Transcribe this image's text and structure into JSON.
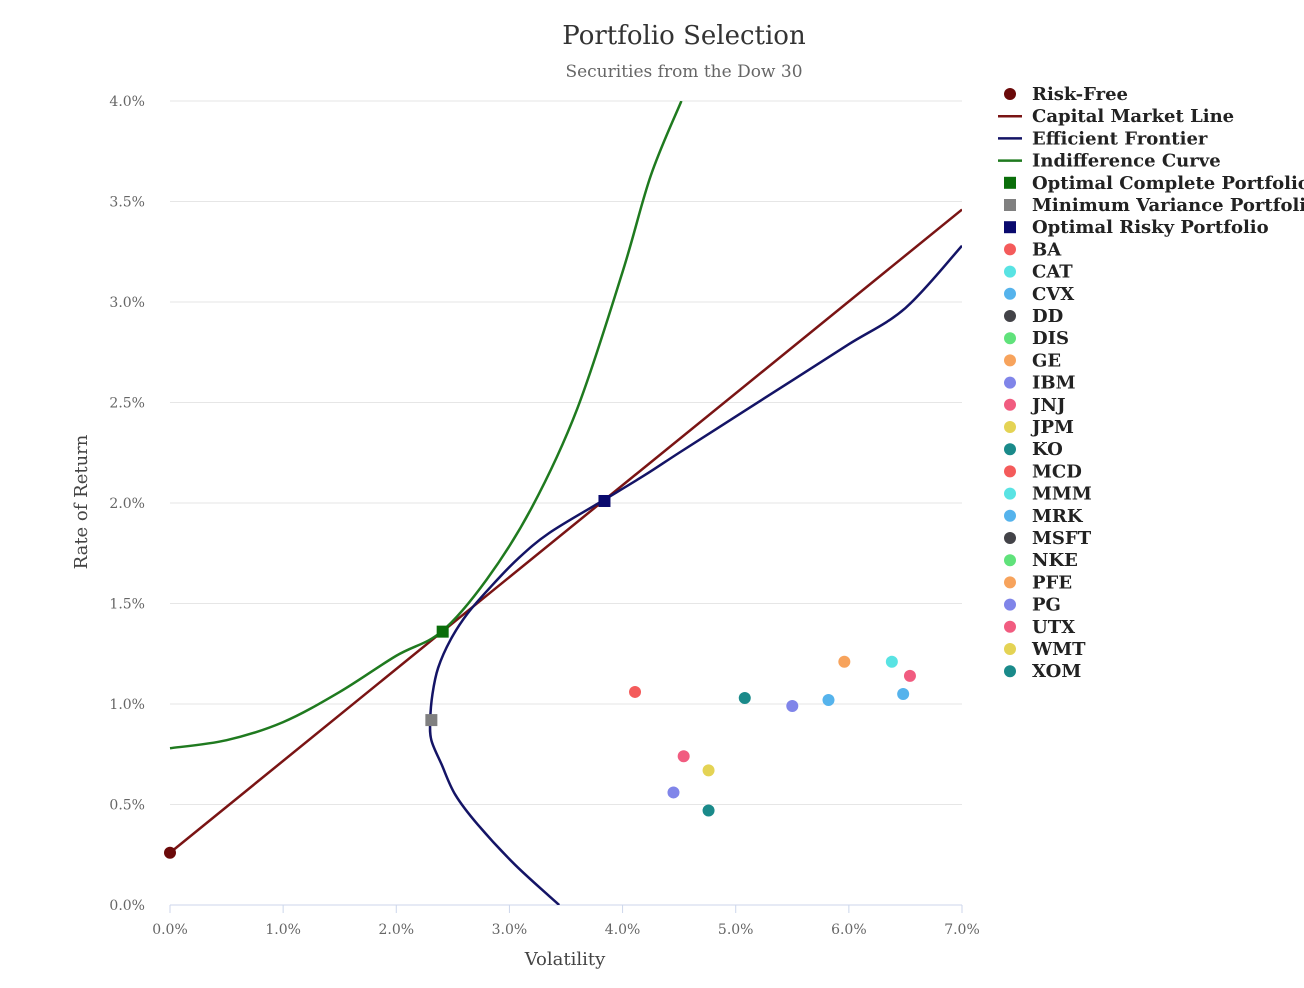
{
  "chart_data": {
    "type": "scatter",
    "title": "Portfolio Selection",
    "subtitle": "Securities from the Dow 30",
    "xlabel": "Volatility",
    "ylabel": "Rate of Return",
    "xlim": [
      0,
      0.07
    ],
    "ylim": [
      0,
      0.04
    ],
    "x_ticks": [
      0,
      0.01,
      0.02,
      0.03,
      0.04,
      0.05,
      0.06,
      0.07
    ],
    "y_ticks": [
      0,
      0.005,
      0.01,
      0.015,
      0.02,
      0.025,
      0.03,
      0.035,
      0.04
    ],
    "x_tick_labels": [
      "0.0%",
      "1.0%",
      "2.0%",
      "3.0%",
      "4.0%",
      "5.0%",
      "6.0%",
      "7.0%"
    ],
    "y_tick_labels": [
      "0.0%",
      "0.5%",
      "1.0%",
      "1.5%",
      "2.0%",
      "2.5%",
      "3.0%",
      "3.5%",
      "4.0%"
    ],
    "grid": "horizontal",
    "legend_position": "right",
    "series": [
      {
        "name": "Risk-Free",
        "kind": "point",
        "marker": "circle",
        "color": "#6b0a0a",
        "points": [
          [
            0.0,
            0.0026
          ]
        ]
      },
      {
        "name": "Capital Market Line",
        "kind": "line",
        "color": "#7a1414",
        "points": [
          [
            0.0,
            0.0026
          ],
          [
            0.07,
            0.0346
          ]
        ]
      },
      {
        "name": "Efficient Frontier",
        "kind": "line",
        "color": "#141466",
        "points": [
          [
            0.0344,
            0.0
          ],
          [
            0.0305,
            0.002
          ],
          [
            0.0272,
            0.004
          ],
          [
            0.0252,
            0.0055
          ],
          [
            0.024,
            0.007
          ],
          [
            0.0231,
            0.0082
          ],
          [
            0.023,
            0.0092
          ],
          [
            0.0232,
            0.0105
          ],
          [
            0.0237,
            0.0118
          ],
          [
            0.0248,
            0.0132
          ],
          [
            0.0263,
            0.0145
          ],
          [
            0.0283,
            0.0158
          ],
          [
            0.0307,
            0.0172
          ],
          [
            0.0335,
            0.0185
          ],
          [
            0.0382,
            0.0201
          ],
          [
            0.042,
            0.0214
          ],
          [
            0.045,
            0.0225
          ],
          [
            0.05,
            0.0243
          ],
          [
            0.055,
            0.0261
          ],
          [
            0.06,
            0.0279
          ],
          [
            0.065,
            0.0297
          ],
          [
            0.07,
            0.0328
          ]
        ]
      },
      {
        "name": "Indifference Curve",
        "kind": "line",
        "color": "#1f7a1f",
        "points": [
          [
            0.0,
            0.0078
          ],
          [
            0.005,
            0.0082
          ],
          [
            0.01,
            0.0091
          ],
          [
            0.015,
            0.0106
          ],
          [
            0.02,
            0.0124
          ],
          [
            0.024,
            0.0136
          ],
          [
            0.028,
            0.0162
          ],
          [
            0.032,
            0.0198
          ],
          [
            0.036,
            0.0247
          ],
          [
            0.04,
            0.0315
          ],
          [
            0.0425,
            0.0363
          ],
          [
            0.0452,
            0.04
          ]
        ]
      },
      {
        "name": "Optimal Complete Portfolio",
        "kind": "point",
        "marker": "square",
        "color": "#0a6e0a",
        "points": [
          [
            0.0241,
            0.0136
          ]
        ]
      },
      {
        "name": "Minimum Variance Portfolio",
        "kind": "point",
        "marker": "square",
        "color": "#808080",
        "points": [
          [
            0.0231,
            0.0092
          ]
        ]
      },
      {
        "name": "Optimal Risky Portfolio",
        "kind": "point",
        "marker": "square",
        "color": "#0a0a6e",
        "points": [
          [
            0.0384,
            0.0201
          ]
        ]
      },
      {
        "name": "BA",
        "kind": "point",
        "marker": "circle",
        "color": "#f45b5b",
        "points": [
          [
            0.0411,
            0.0106
          ]
        ]
      },
      {
        "name": "CAT",
        "kind": "point",
        "marker": "circle",
        "color": "#59e3e3",
        "points": [
          [
            0.0638,
            0.0121
          ]
        ]
      },
      {
        "name": "CVX",
        "kind": "point",
        "marker": "circle",
        "color": "#55b3ec",
        "points": [
          [
            0.0648,
            0.0105
          ]
        ]
      },
      {
        "name": "DD",
        "kind": "point",
        "marker": "circle",
        "color": "#434348",
        "points": []
      },
      {
        "name": "DIS",
        "kind": "point",
        "marker": "circle",
        "color": "#60e27b",
        "points": []
      },
      {
        "name": "GE",
        "kind": "point",
        "marker": "circle",
        "color": "#f7a35c",
        "points": [
          [
            0.0596,
            0.0121
          ]
        ]
      },
      {
        "name": "IBM",
        "kind": "point",
        "marker": "circle",
        "color": "#8085e9",
        "points": [
          [
            0.0445,
            0.0056
          ]
        ]
      },
      {
        "name": "JNJ",
        "kind": "point",
        "marker": "circle",
        "color": "#f15c80",
        "points": [
          [
            0.0454,
            0.0074
          ]
        ]
      },
      {
        "name": "JPM",
        "kind": "point",
        "marker": "circle",
        "color": "#e4d354",
        "points": [
          [
            0.0476,
            0.0067
          ]
        ]
      },
      {
        "name": "KO",
        "kind": "point",
        "marker": "circle",
        "color": "#1a8a8a",
        "points": [
          [
            0.0508,
            0.0103
          ]
        ]
      },
      {
        "name": "MCD",
        "kind": "point",
        "marker": "circle",
        "color": "#f45b5b",
        "points": []
      },
      {
        "name": "MMM",
        "kind": "point",
        "marker": "circle",
        "color": "#59e3e3",
        "points": []
      },
      {
        "name": "MRK",
        "kind": "point",
        "marker": "circle",
        "color": "#55b3ec",
        "points": [
          [
            0.0582,
            0.0102
          ]
        ]
      },
      {
        "name": "MSFT",
        "kind": "point",
        "marker": "circle",
        "color": "#434348",
        "points": []
      },
      {
        "name": "NKE",
        "kind": "point",
        "marker": "circle",
        "color": "#60e27b",
        "points": []
      },
      {
        "name": "PFE",
        "kind": "point",
        "marker": "circle",
        "color": "#f7a35c",
        "points": []
      },
      {
        "name": "PG",
        "kind": "point",
        "marker": "circle",
        "color": "#8085e9",
        "points": [
          [
            0.055,
            0.0099
          ]
        ]
      },
      {
        "name": "UTX",
        "kind": "point",
        "marker": "circle",
        "color": "#f15c80",
        "points": [
          [
            0.0654,
            0.0114
          ]
        ]
      },
      {
        "name": "WMT",
        "kind": "point",
        "marker": "circle",
        "color": "#e4d354",
        "points": []
      },
      {
        "name": "XOM",
        "kind": "point",
        "marker": "circle",
        "color": "#1a8a8a",
        "points": [
          [
            0.0476,
            0.0047
          ]
        ]
      }
    ]
  }
}
